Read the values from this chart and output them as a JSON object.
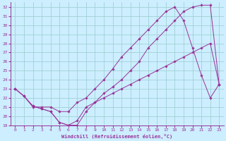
{
  "xlabel": "Windchill (Refroidissement éolien,°C)",
  "bg_color": "#cceeff",
  "line_color": "#993399",
  "grid_color": "#99cccc",
  "xlim": [
    -0.5,
    23.5
  ],
  "ylim": [
    19,
    32.5
  ],
  "xticks": [
    0,
    1,
    2,
    3,
    4,
    5,
    6,
    7,
    8,
    9,
    10,
    11,
    12,
    13,
    14,
    15,
    16,
    17,
    18,
    19,
    20,
    21,
    22,
    23
  ],
  "yticks": [
    19,
    20,
    21,
    22,
    23,
    24,
    25,
    26,
    27,
    28,
    29,
    30,
    31,
    32
  ],
  "line1_x": [
    0,
    1,
    2,
    3,
    4,
    5,
    6,
    7,
    8,
    9,
    10,
    11,
    12,
    13,
    14,
    15,
    16,
    17,
    18,
    19,
    20,
    21,
    22,
    23
  ],
  "line1_y": [
    23.0,
    22.2,
    21.1,
    20.8,
    20.5,
    19.3,
    19.0,
    19.5,
    21.0,
    21.5,
    22.5,
    23.2,
    24.0,
    25.0,
    26.0,
    27.5,
    28.5,
    29.5,
    30.5,
    31.5,
    32.0,
    32.2,
    32.2,
    23.5
  ],
  "line2_x": [
    0,
    1,
    2,
    3,
    4,
    5,
    6,
    7,
    8,
    9,
    10,
    11,
    12,
    13,
    14,
    15,
    16,
    17,
    18,
    19,
    20,
    21,
    22,
    23
  ],
  "line2_y": [
    23.0,
    22.2,
    21.0,
    21.0,
    21.0,
    20.5,
    20.5,
    21.5,
    22.0,
    23.0,
    24.0,
    25.2,
    26.5,
    27.5,
    28.5,
    29.5,
    30.5,
    31.5,
    32.0,
    30.5,
    27.5,
    24.5,
    22.0,
    23.5
  ],
  "line3_x": [
    0,
    1,
    2,
    3,
    4,
    5,
    6,
    7,
    8,
    9,
    10,
    11,
    12,
    13,
    14,
    15,
    16,
    17,
    18,
    19,
    20,
    21,
    22,
    23
  ],
  "line3_y": [
    23.0,
    22.2,
    21.1,
    20.8,
    20.5,
    19.3,
    19.0,
    19.0,
    20.5,
    21.5,
    22.0,
    22.5,
    23.0,
    23.5,
    24.0,
    24.5,
    25.0,
    25.5,
    26.0,
    26.5,
    27.0,
    27.5,
    28.0,
    23.5
  ]
}
